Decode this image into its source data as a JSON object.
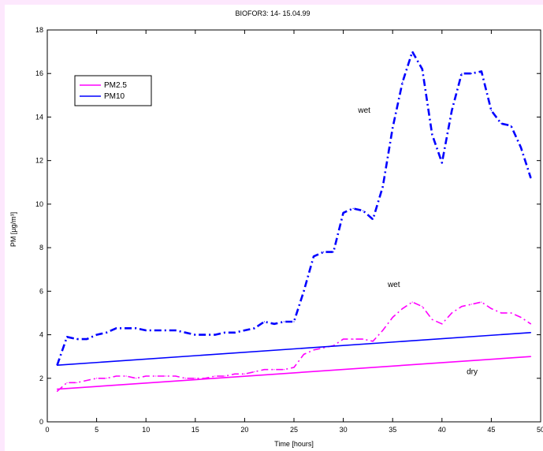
{
  "chart_data": {
    "type": "line",
    "title": "BIOFOR3: 14- 15.04.99",
    "xlabel": "Time [hours]",
    "ylabel": "PM [µg/m³]",
    "xlim": [
      0,
      50
    ],
    "ylim": [
      0,
      18
    ],
    "x_ticks": [
      "0",
      "5",
      "10",
      "15",
      "20",
      "25",
      "30",
      "35",
      "40",
      "45",
      "50"
    ],
    "y_ticks": [
      "0",
      "2",
      "4",
      "6",
      "8",
      "10",
      "12",
      "14",
      "16",
      "18"
    ],
    "grid": false,
    "legend": {
      "placement": "top-left",
      "entries": [
        {
          "label": "PM2.5",
          "color": "#ff00ff"
        },
        {
          "label": "PM10",
          "color": "#0000ff"
        }
      ]
    },
    "annotations": [
      {
        "text": "wet",
        "x": 31.5,
        "y": 14.2
      },
      {
        "text": "wet",
        "x": 34.5,
        "y": 6.2
      },
      {
        "text": "dry",
        "x": 42.5,
        "y": 2.2
      }
    ],
    "series": [
      {
        "color": "#0000ff",
        "style": "dashdot",
        "width": 2.6,
        "x": [
          1,
          2,
          3,
          4,
          5,
          6,
          7,
          8,
          9,
          10,
          11,
          12,
          13,
          14,
          15,
          16,
          17,
          18,
          19,
          20,
          21,
          22,
          23,
          24,
          25,
          26,
          27,
          28,
          29,
          30,
          31,
          32,
          33,
          34,
          35,
          36,
          37,
          38,
          39,
          40,
          41,
          42,
          43,
          44,
          45,
          46,
          47,
          48,
          49
        ],
        "y": [
          2.6,
          3.9,
          3.8,
          3.8,
          4.0,
          4.1,
          4.3,
          4.3,
          4.3,
          4.2,
          4.2,
          4.2,
          4.2,
          4.1,
          4.0,
          4.0,
          4.0,
          4.1,
          4.1,
          4.2,
          4.3,
          4.6,
          4.5,
          4.6,
          4.6,
          6.0,
          7.6,
          7.8,
          7.8,
          9.6,
          9.8,
          9.7,
          9.3,
          10.8,
          13.5,
          15.6,
          17.0,
          16.2,
          13.2,
          11.9,
          14.3,
          16.0,
          16.0,
          16.1,
          14.3,
          13.7,
          13.6,
          12.6,
          11.2
        ]
      },
      {
        "color": "#ff00ff",
        "style": "dashdot",
        "width": 1.6,
        "x": [
          1,
          2,
          3,
          4,
          5,
          6,
          7,
          8,
          9,
          10,
          11,
          12,
          13,
          14,
          15,
          16,
          17,
          18,
          19,
          20,
          21,
          22,
          23,
          24,
          25,
          26,
          27,
          28,
          29,
          30,
          31,
          32,
          33,
          34,
          35,
          36,
          37,
          38,
          39,
          40,
          41,
          42,
          43,
          44,
          45,
          46,
          47,
          48,
          49
        ],
        "y": [
          1.4,
          1.8,
          1.8,
          1.9,
          2.0,
          2.0,
          2.1,
          2.1,
          2.0,
          2.1,
          2.1,
          2.1,
          2.1,
          2.0,
          2.0,
          2.0,
          2.1,
          2.1,
          2.2,
          2.2,
          2.3,
          2.4,
          2.4,
          2.4,
          2.5,
          3.1,
          3.3,
          3.4,
          3.5,
          3.8,
          3.8,
          3.8,
          3.7,
          4.2,
          4.8,
          5.2,
          5.5,
          5.3,
          4.7,
          4.5,
          5.0,
          5.3,
          5.4,
          5.5,
          5.2,
          5.0,
          5.0,
          4.8,
          4.5
        ]
      },
      {
        "color": "#0000ff",
        "style": "solid",
        "width": 1.6,
        "x": [
          1,
          49
        ],
        "y": [
          2.6,
          4.1
        ]
      },
      {
        "color": "#ff00ff",
        "style": "solid",
        "width": 1.6,
        "x": [
          1,
          49
        ],
        "y": [
          1.5,
          3.0
        ]
      }
    ]
  }
}
